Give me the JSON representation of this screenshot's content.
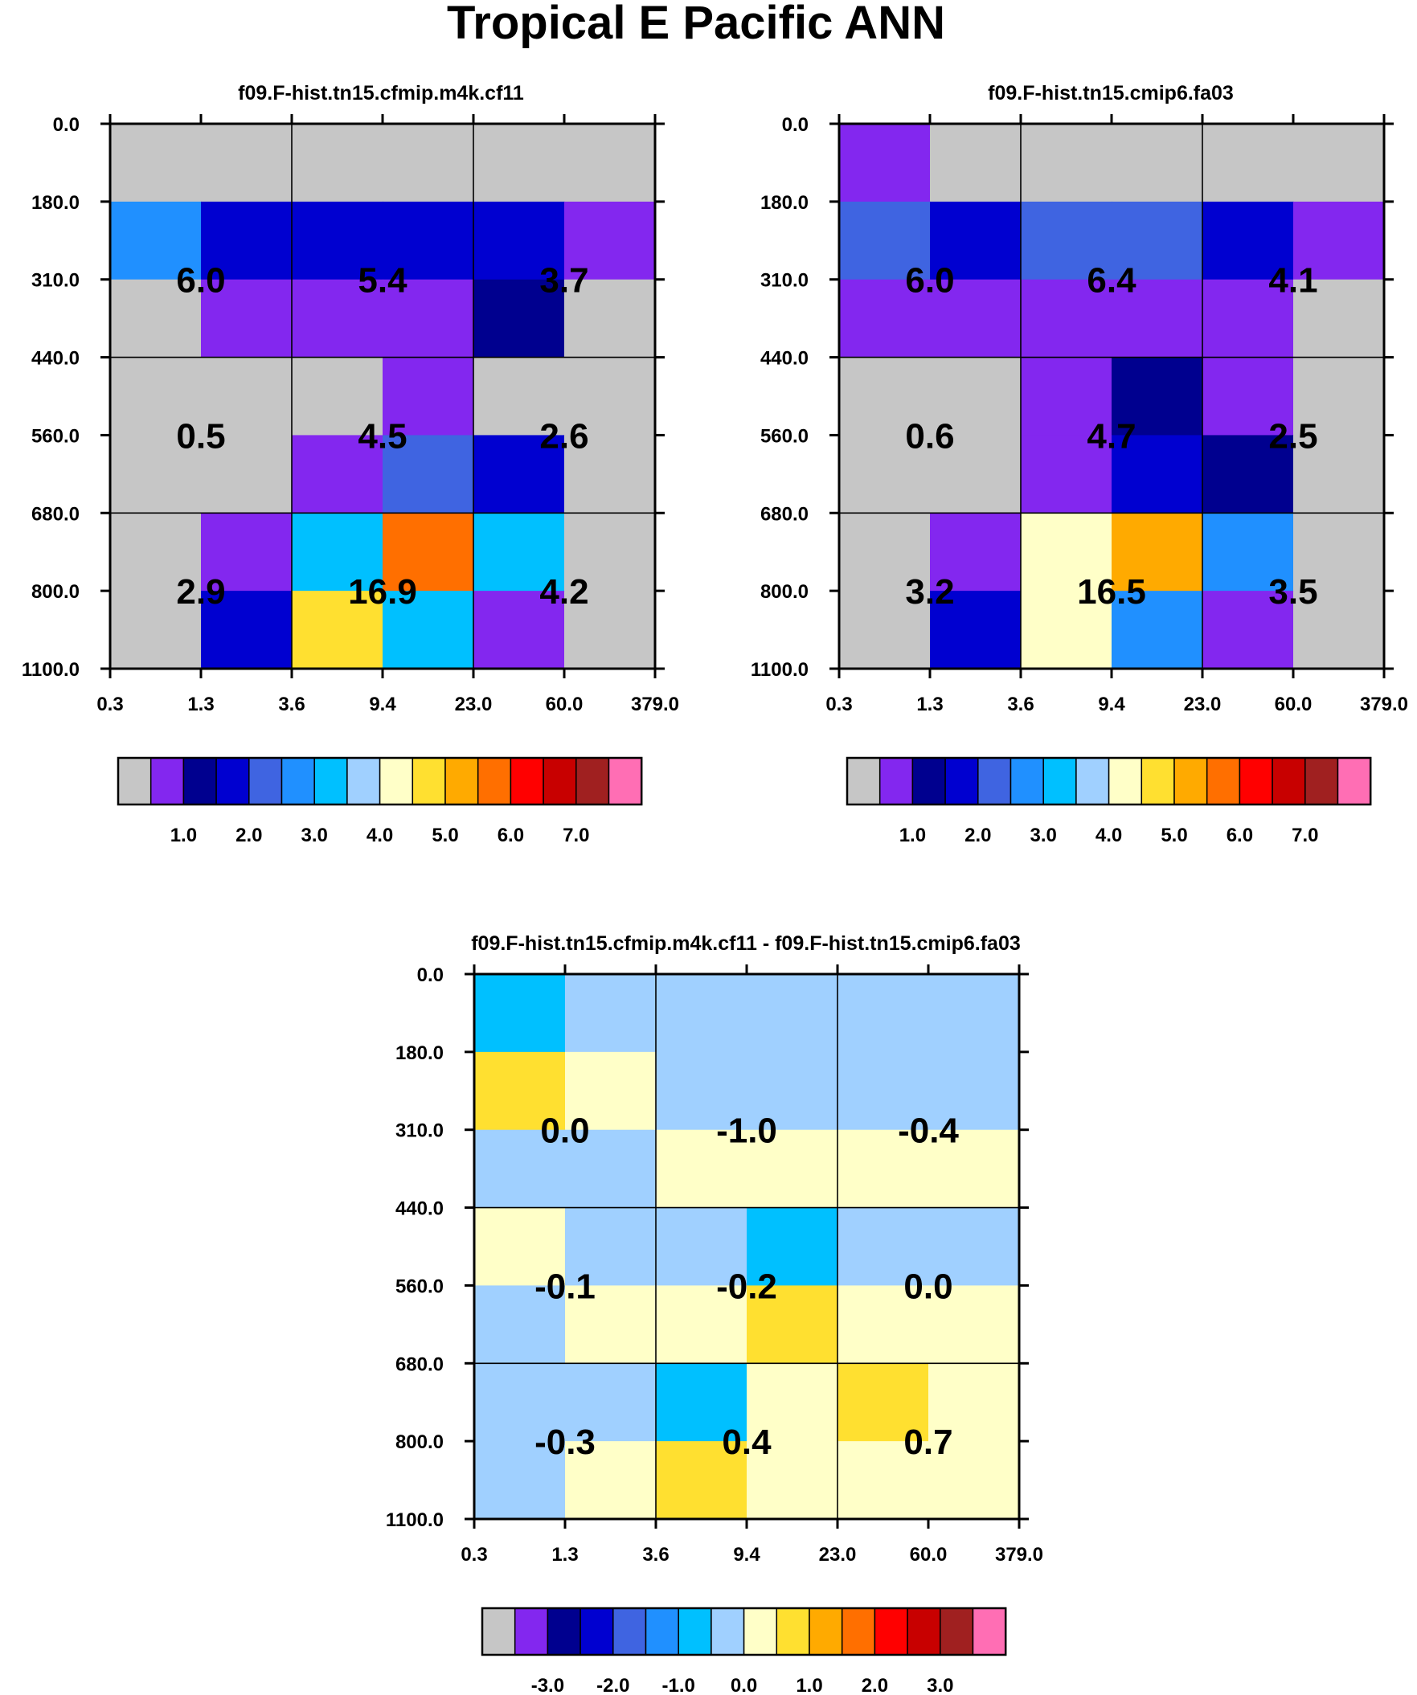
{
  "title": "Tropical E Pacific ANN",
  "palette": [
    "#c6c6c6",
    "#8327ef",
    "#00008f",
    "#0000d0",
    "#3f64e1",
    "#2090ff",
    "#00c0ff",
    "#a0d0ff",
    "#ffffc8",
    "#ffe030",
    "#ffaa00",
    "#ff6f00",
    "#ff0000",
    "#c80000",
    "#a02020",
    "#ff6eb4"
  ],
  "chart_data": [
    {
      "type": "heatmap",
      "id": "p1",
      "title": "f09.F-hist.tn15.cfmip.m4k.cf11",
      "x_ticks": [
        "0.3",
        "1.3",
        "3.6",
        "9.4",
        "23.0",
        "60.0",
        "379.0"
      ],
      "y_ticks": [
        "0.0",
        "180.0",
        "310.0",
        "440.0",
        "560.0",
        "680.0",
        "800.0",
        "1100.0"
      ],
      "xlabel": "",
      "ylabel": "",
      "cell_color_index": [
        [
          0,
          0,
          0,
          0,
          0,
          0
        ],
        [
          5,
          3,
          3,
          3,
          3,
          1
        ],
        [
          0,
          1,
          1,
          1,
          2,
          0
        ],
        [
          0,
          0,
          0,
          1,
          0,
          0
        ],
        [
          0,
          0,
          1,
          4,
          3,
          0
        ],
        [
          0,
          1,
          6,
          11,
          6,
          0
        ],
        [
          0,
          3,
          9,
          6,
          1,
          0
        ]
      ],
      "box_values": [
        [
          "6.0",
          "5.4",
          "3.7"
        ],
        [
          "0.5",
          "4.5",
          "2.6"
        ],
        [
          "2.9",
          "16.9",
          "4.2"
        ]
      ],
      "colorbar_labels": [
        "1.0",
        "2.0",
        "3.0",
        "4.0",
        "5.0",
        "6.0",
        "7.0"
      ]
    },
    {
      "type": "heatmap",
      "id": "p2",
      "title": "f09.F-hist.tn15.cmip6.fa03",
      "x_ticks": [
        "0.3",
        "1.3",
        "3.6",
        "9.4",
        "23.0",
        "60.0",
        "379.0"
      ],
      "y_ticks": [
        "0.0",
        "180.0",
        "310.0",
        "440.0",
        "560.0",
        "680.0",
        "800.0",
        "1100.0"
      ],
      "xlabel": "",
      "ylabel": "",
      "cell_color_index": [
        [
          1,
          0,
          0,
          0,
          0,
          0
        ],
        [
          4,
          3,
          4,
          4,
          3,
          1
        ],
        [
          1,
          1,
          1,
          1,
          1,
          0
        ],
        [
          0,
          0,
          1,
          2,
          1,
          0
        ],
        [
          0,
          0,
          1,
          3,
          2,
          0
        ],
        [
          0,
          1,
          8,
          10,
          5,
          0
        ],
        [
          0,
          3,
          8,
          5,
          1,
          0
        ]
      ],
      "box_values": [
        [
          "6.0",
          "6.4",
          "4.1"
        ],
        [
          "0.6",
          "4.7",
          "2.5"
        ],
        [
          "3.2",
          "16.5",
          "3.5"
        ]
      ],
      "colorbar_labels": [
        "1.0",
        "2.0",
        "3.0",
        "4.0",
        "5.0",
        "6.0",
        "7.0"
      ]
    },
    {
      "type": "heatmap",
      "id": "p3",
      "title": "f09.F-hist.tn15.cfmip.m4k.cf11 - f09.F-hist.tn15.cmip6.fa03",
      "x_ticks": [
        "0.3",
        "1.3",
        "3.6",
        "9.4",
        "23.0",
        "60.0",
        "379.0"
      ],
      "y_ticks": [
        "0.0",
        "180.0",
        "310.0",
        "440.0",
        "560.0",
        "680.0",
        "800.0",
        "1100.0"
      ],
      "xlabel": "",
      "ylabel": "",
      "cell_color_index": [
        [
          6,
          7,
          7,
          7,
          7,
          7
        ],
        [
          9,
          8,
          7,
          7,
          7,
          7
        ],
        [
          7,
          7,
          8,
          8,
          8,
          8
        ],
        [
          8,
          7,
          7,
          6,
          7,
          7
        ],
        [
          7,
          8,
          8,
          9,
          8,
          8
        ],
        [
          7,
          7,
          6,
          8,
          9,
          8
        ],
        [
          7,
          8,
          9,
          8,
          8,
          8
        ]
      ],
      "box_values": [
        [
          "0.0",
          "-1.0",
          "-0.4"
        ],
        [
          "-0.1",
          "-0.2",
          "0.0"
        ],
        [
          "-0.3",
          "0.4",
          "0.7"
        ]
      ],
      "colorbar_labels": [
        "-3.0",
        "-2.0",
        "-1.0",
        "0.0",
        "1.0",
        "2.0",
        "3.0"
      ]
    }
  ]
}
